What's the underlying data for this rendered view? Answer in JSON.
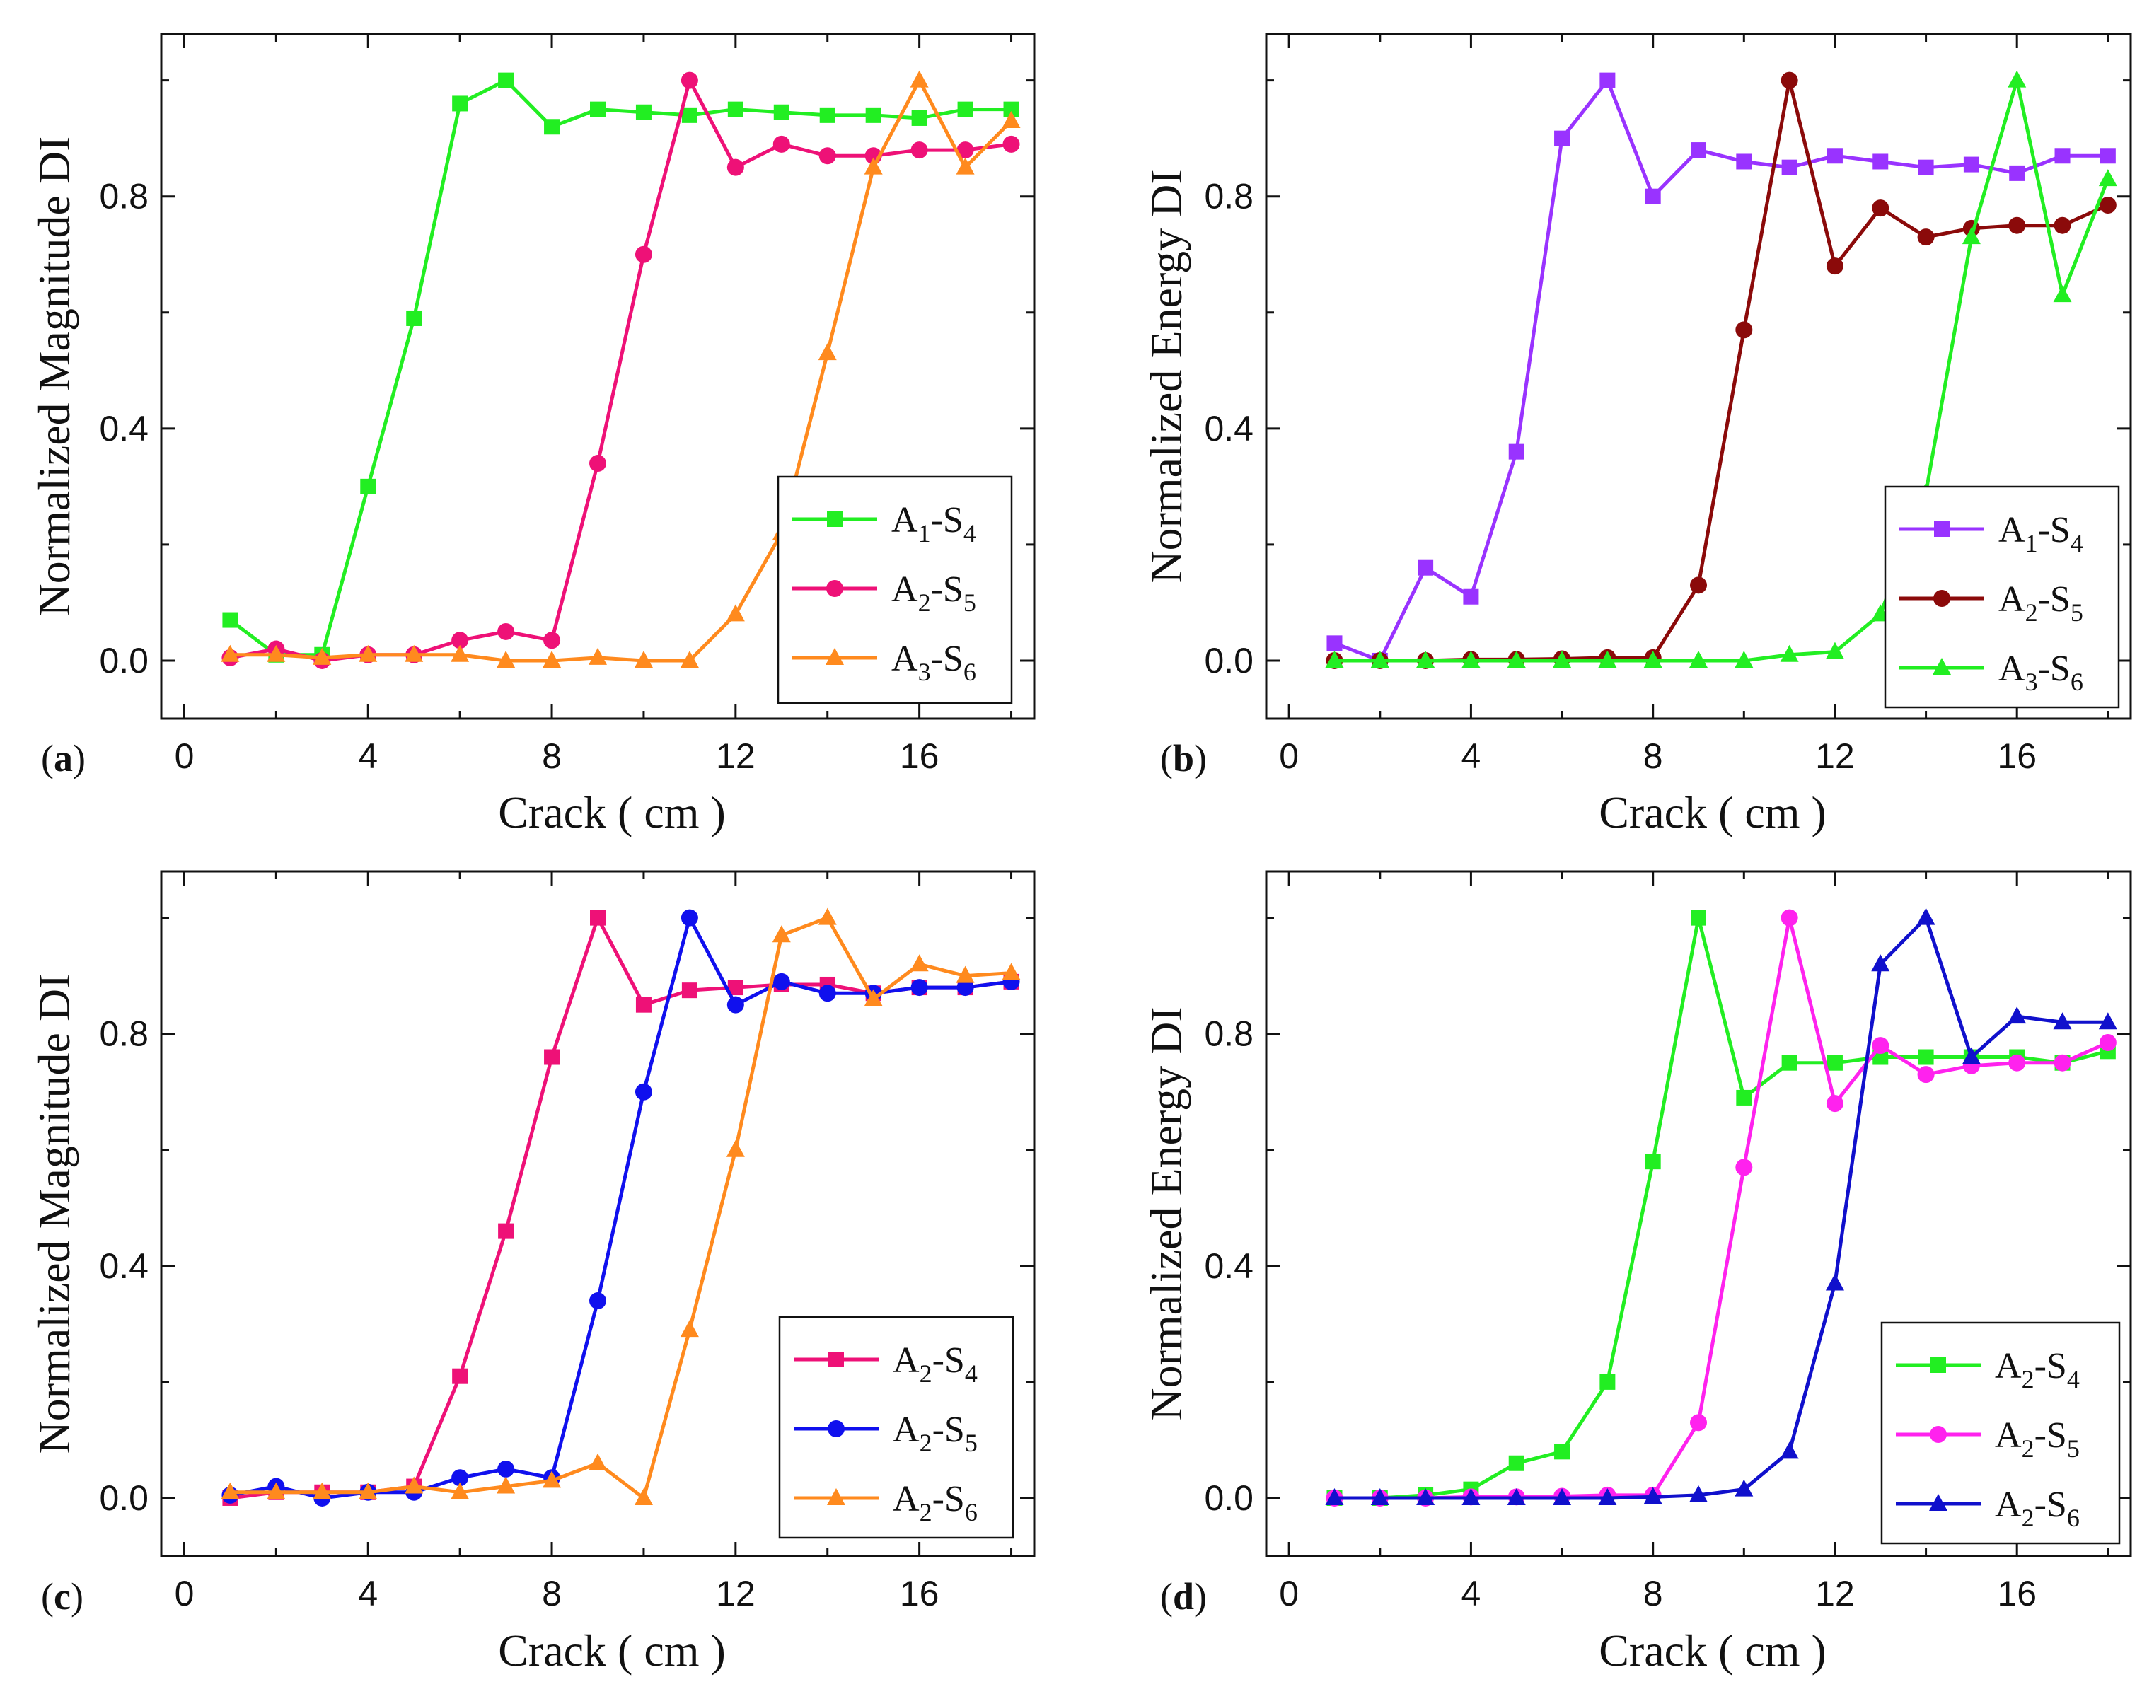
{
  "chart_data": [
    {
      "type": "line",
      "panel": "(a)",
      "panel_letter": "a",
      "xlabel": "Crack ( cm )",
      "ylabel": "Normalized Magnitude DI",
      "xlim": [
        -0.5,
        18.5
      ],
      "ylim": [
        -0.1,
        1.08
      ],
      "xticks": [
        0,
        4,
        8,
        12,
        16
      ],
      "xtick_labels": [
        "0",
        "4",
        "8",
        "12",
        "16"
      ],
      "yticks": [
        0.0,
        0.4,
        0.8
      ],
      "ytick_labels": [
        "0.0",
        "0.4",
        "0.8"
      ],
      "x": [
        1,
        2,
        3,
        4,
        5,
        6,
        7,
        8,
        9,
        10,
        11,
        12,
        13,
        14,
        15,
        16,
        17,
        18
      ],
      "legend_position": "bottom-right",
      "series": [
        {
          "name": "A1-S4",
          "label_main": "A",
          "label_sub1": "1",
          "label_mid": "-S",
          "label_sub2": "4",
          "color": "#22ee22",
          "marker": "square",
          "values": [
            0.07,
            0.01,
            0.01,
            0.3,
            0.59,
            0.96,
            1.0,
            0.92,
            0.95,
            0.945,
            0.94,
            0.95,
            0.945,
            0.94,
            0.94,
            0.935,
            0.95,
            0.95
          ]
        },
        {
          "name": "A2-S5",
          "label_main": "A",
          "label_sub1": "2",
          "label_mid": "-S",
          "label_sub2": "5",
          "color": "#ee1177",
          "marker": "circle",
          "values": [
            0.005,
            0.02,
            0.0,
            0.01,
            0.01,
            0.035,
            0.05,
            0.035,
            0.34,
            0.7,
            1.0,
            0.85,
            0.89,
            0.87,
            0.87,
            0.88,
            0.88,
            0.89
          ]
        },
        {
          "name": "A3-S6",
          "label_main": "A",
          "label_sub1": "3",
          "label_mid": "-S",
          "label_sub2": "6",
          "color": "#ff8a1e",
          "marker": "triangle",
          "values": [
            0.01,
            0.01,
            0.005,
            0.01,
            0.01,
            0.01,
            0.0,
            0.0,
            0.005,
            0.0,
            0.0,
            0.08,
            0.22,
            0.53,
            0.85,
            1.0,
            0.85,
            0.93
          ]
        }
      ]
    },
    {
      "type": "line",
      "panel": "(b)",
      "panel_letter": "b",
      "xlabel": "Crack ( cm )",
      "ylabel": "Normalized Energy DI",
      "xlim": [
        -0.5,
        18.5
      ],
      "ylim": [
        -0.1,
        1.08
      ],
      "xticks": [
        0,
        4,
        8,
        12,
        16
      ],
      "xtick_labels": [
        "0",
        "4",
        "8",
        "12",
        "16"
      ],
      "yticks": [
        0.0,
        0.4,
        0.8
      ],
      "ytick_labels": [
        "0.0",
        "0.4",
        "0.8"
      ],
      "x": [
        1,
        2,
        3,
        4,
        5,
        6,
        7,
        8,
        9,
        10,
        11,
        12,
        13,
        14,
        15,
        16,
        17,
        18
      ],
      "legend_position": "bottom-right",
      "series": [
        {
          "name": "A1-S4",
          "label_main": "A",
          "label_sub1": "1",
          "label_mid": "-S",
          "label_sub2": "4",
          "color": "#9933ff",
          "marker": "square",
          "values": [
            0.03,
            0.0,
            0.16,
            0.11,
            0.36,
            0.9,
            1.0,
            0.8,
            0.88,
            0.86,
            0.85,
            0.87,
            0.86,
            0.85,
            0.855,
            0.84,
            0.87,
            0.87
          ]
        },
        {
          "name": "A2-S5",
          "label_main": "A",
          "label_sub1": "2",
          "label_mid": "-S",
          "label_sub2": "5",
          "color": "#8b0a0a",
          "marker": "circle",
          "values": [
            0.0,
            0.0,
            0.0,
            0.002,
            0.002,
            0.003,
            0.005,
            0.005,
            0.13,
            0.57,
            1.0,
            0.68,
            0.78,
            0.73,
            0.745,
            0.75,
            0.75,
            0.785
          ]
        },
        {
          "name": "A3-S6",
          "label_main": "A",
          "label_sub1": "3",
          "label_mid": "-S",
          "label_sub2": "6",
          "color": "#22ee22",
          "marker": "triangle",
          "values": [
            0.0,
            0.0,
            0.0,
            0.0,
            0.0,
            0.0,
            0.0,
            0.0,
            0.0,
            0.0,
            0.01,
            0.015,
            0.08,
            0.29,
            0.73,
            1.0,
            0.63,
            0.83
          ]
        }
      ]
    },
    {
      "type": "line",
      "panel": "(c)",
      "panel_letter": "c",
      "xlabel": "Crack ( cm )",
      "ylabel": "Normalized Magnitude DI",
      "xlim": [
        -0.5,
        18.5
      ],
      "ylim": [
        -0.1,
        1.08
      ],
      "xticks": [
        0,
        4,
        8,
        12,
        16
      ],
      "xtick_labels": [
        "0",
        "4",
        "8",
        "12",
        "16"
      ],
      "yticks": [
        0.0,
        0.4,
        0.8
      ],
      "ytick_labels": [
        "0.0",
        "0.4",
        "0.8"
      ],
      "x": [
        1,
        2,
        3,
        4,
        5,
        6,
        7,
        8,
        9,
        10,
        11,
        12,
        13,
        14,
        15,
        16,
        17,
        18
      ],
      "legend_position": "bottom-right",
      "series": [
        {
          "name": "A2-S4",
          "label_main": "A",
          "label_sub1": "2",
          "label_mid": "-S",
          "label_sub2": "4",
          "color": "#ee1177",
          "marker": "square",
          "values": [
            0.0,
            0.01,
            0.01,
            0.01,
            0.02,
            0.21,
            0.46,
            0.76,
            1.0,
            0.85,
            0.875,
            0.88,
            0.885,
            0.885,
            0.87,
            0.88,
            0.88,
            0.89
          ]
        },
        {
          "name": "A2-S5",
          "label_main": "A",
          "label_sub1": "2",
          "label_mid": "-S",
          "label_sub2": "5",
          "color": "#1010ee",
          "marker": "circle",
          "values": [
            0.005,
            0.02,
            0.0,
            0.01,
            0.01,
            0.035,
            0.05,
            0.035,
            0.34,
            0.7,
            1.0,
            0.85,
            0.89,
            0.87,
            0.87,
            0.88,
            0.88,
            0.89
          ]
        },
        {
          "name": "A2-S6",
          "label_main": "A",
          "label_sub1": "2",
          "label_mid": "-S",
          "label_sub2": "6",
          "color": "#ff8a1e",
          "marker": "triangle",
          "values": [
            0.01,
            0.01,
            0.01,
            0.01,
            0.02,
            0.01,
            0.02,
            0.03,
            0.06,
            0.0,
            0.29,
            0.6,
            0.97,
            1.0,
            0.86,
            0.92,
            0.9,
            0.905
          ]
        }
      ]
    },
    {
      "type": "line",
      "panel": "(d)",
      "panel_letter": "d",
      "xlabel": "Crack ( cm )",
      "ylabel": "Normalized Energy DI",
      "xlim": [
        -0.5,
        18.5
      ],
      "ylim": [
        -0.1,
        1.08
      ],
      "xticks": [
        0,
        4,
        8,
        12,
        16
      ],
      "xtick_labels": [
        "0",
        "4",
        "8",
        "12",
        "16"
      ],
      "yticks": [
        0.0,
        0.4,
        0.8
      ],
      "ytick_labels": [
        "0.0",
        "0.4",
        "0.8"
      ],
      "x": [
        1,
        2,
        3,
        4,
        5,
        6,
        7,
        8,
        9,
        10,
        11,
        12,
        13,
        14,
        15,
        16,
        17,
        18
      ],
      "legend_position": "bottom-right",
      "series": [
        {
          "name": "A2-S4",
          "label_main": "A",
          "label_sub1": "2",
          "label_mid": "-S",
          "label_sub2": "4",
          "color": "#22ee22",
          "marker": "square",
          "values": [
            0.0,
            0.0,
            0.005,
            0.015,
            0.06,
            0.08,
            0.2,
            0.58,
            1.0,
            0.69,
            0.75,
            0.75,
            0.76,
            0.76,
            0.76,
            0.76,
            0.75,
            0.77
          ]
        },
        {
          "name": "A2-S5",
          "label_main": "A",
          "label_sub1": "2",
          "label_mid": "-S",
          "label_sub2": "5",
          "color": "#ff22ee",
          "marker": "circle",
          "values": [
            0.0,
            0.0,
            0.0,
            0.002,
            0.002,
            0.003,
            0.005,
            0.005,
            0.13,
            0.57,
            1.0,
            0.68,
            0.78,
            0.73,
            0.745,
            0.75,
            0.75,
            0.785
          ]
        },
        {
          "name": "A2-S6",
          "label_main": "A",
          "label_sub1": "2",
          "label_mid": "-S",
          "label_sub2": "6",
          "color": "#1010cc",
          "marker": "triangle",
          "values": [
            0.0,
            0.0,
            0.0,
            0.0,
            0.0,
            0.0,
            0.0,
            0.002,
            0.005,
            0.015,
            0.08,
            0.37,
            0.92,
            1.0,
            0.76,
            0.83,
            0.82,
            0.82
          ]
        }
      ]
    }
  ]
}
